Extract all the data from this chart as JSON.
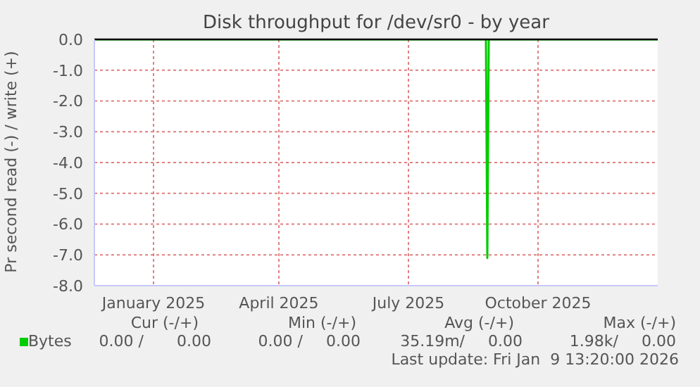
{
  "chart_data": {
    "type": "line",
    "title": "Disk throughput for /dev/sr0 - by year",
    "ylabel": "Pr second read (-) / write (+)",
    "series": [
      {
        "name": "Bytes",
        "color": "#00cc00",
        "x": [
          "2024-12-05",
          "2025-09-09",
          "2025-09-10",
          "2025-09-11",
          "2026-01-09"
        ],
        "values": [
          0,
          0,
          -7.1,
          0,
          0
        ]
      }
    ],
    "xlim": [
      "2024-12-05",
      "2026-01-09"
    ],
    "xticks": [
      {
        "value": "2025-01-16",
        "label": "January 2025"
      },
      {
        "value": "2025-04-15",
        "label": "April 2025"
      },
      {
        "value": "2025-07-16",
        "label": "July 2025"
      },
      {
        "value": "2025-10-16",
        "label": "October 2025"
      }
    ],
    "ylim": [
      -8,
      0
    ],
    "yticks": [
      {
        "value": -8,
        "label": "-8.0"
      },
      {
        "value": -7,
        "label": "-7.0"
      },
      {
        "value": -6,
        "label": "-6.0"
      },
      {
        "value": -5,
        "label": "-5.0"
      },
      {
        "value": -4,
        "label": "-4.0"
      },
      {
        "value": -3,
        "label": "-3.0"
      },
      {
        "value": -2,
        "label": "-2.0"
      },
      {
        "value": -1,
        "label": "-1.0"
      },
      {
        "value": 0,
        "label": "0.0"
      }
    ],
    "ref_lines": [
      {
        "axis": "y",
        "value": 0,
        "color": "#000000"
      }
    ],
    "grid": true,
    "legend": "bottom left",
    "marker": "none",
    "line_style": "solid",
    "annotations": [
      "Cur (-/+)",
      "Min (-/+)",
      "Avg (-/+)",
      "Max (-/+)",
      "0.00 /",
      "0.00",
      "0.00 /",
      "0.00",
      "35.19m/",
      "0.00",
      "1.98k/",
      "0.00",
      "Last update: Fri Jan  9 13:20:00 2026"
    ]
  }
}
